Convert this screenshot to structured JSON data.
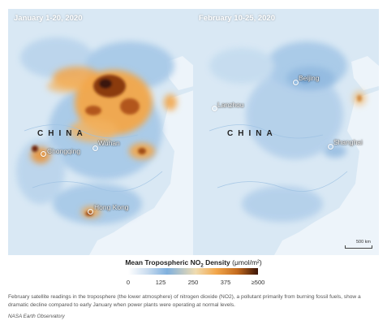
{
  "left_panel": {
    "title": "January 1-20, 2020",
    "country_label": "CHINA",
    "cities": [
      "Chongqing",
      "Wuhan",
      "Hong Kong"
    ]
  },
  "right_panel": {
    "title": "February 10-25, 2020",
    "country_label": "CHINA",
    "cities": [
      "Beijing",
      "Lanzhou",
      "Shanghai"
    ],
    "scale_label": "500 km"
  },
  "legend": {
    "title_main": "Mean Tropospheric NO",
    "title_sub": "2",
    "title_rest": " Density",
    "unit": "(μmol/m²)",
    "ticks": [
      "0",
      "125",
      "250",
      "375",
      "≥500"
    ]
  },
  "caption": "February satellite readings in the troposphere (the lower atmosphere) of nitrogen dioxide (NO2), a pollutant primarily from burning fossil fuels, show a dramatic decline compared to early January when power plants were operating at normal levels.",
  "credit": "NASA Earth Observatory",
  "colors": {
    "land_light": "#d6e6f3",
    "sea": "#eaf2fa",
    "low_no2": "#7fb0de",
    "mid_no2": "#f2a64a",
    "high_no2": "#3b1407"
  }
}
